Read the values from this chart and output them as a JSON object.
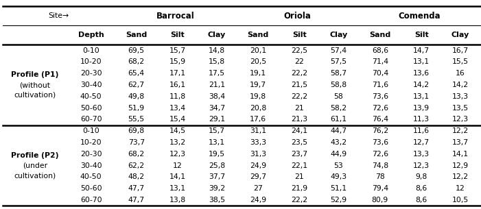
{
  "col_headers": [
    "Depth",
    "Sand",
    "Silt",
    "Clay",
    "Sand",
    "Silt",
    "Clay",
    "Sand",
    "Silt",
    "Clay"
  ],
  "site_labels": [
    "Barrocal",
    "Oriola",
    "Comenda"
  ],
  "p1_rows": [
    [
      "0-10",
      "69,5",
      "15,7",
      "14,8",
      "20,1",
      "22,5",
      "57,4",
      "68,6",
      "14,7",
      "16,7"
    ],
    [
      "10-20",
      "68,2",
      "15,9",
      "15,8",
      "20,5",
      "22",
      "57,5",
      "71,4",
      "13,1",
      "15,5"
    ],
    [
      "20-30",
      "65,4",
      "17,1",
      "17,5",
      "19,1",
      "22,2",
      "58,7",
      "70,4",
      "13,6",
      "16"
    ],
    [
      "30-40",
      "62,7",
      "16,1",
      "21,1",
      "19,7",
      "21,5",
      "58,8",
      "71,6",
      "14,2",
      "14,2"
    ],
    [
      "40-50",
      "49,8",
      "11,8",
      "38,4",
      "19,8",
      "22,2",
      "58",
      "73,6",
      "13,1",
      "13,3"
    ],
    [
      "50-60",
      "51,9",
      "13,4",
      "34,7",
      "20,8",
      "21",
      "58,2",
      "72,6",
      "13,9",
      "13,5"
    ],
    [
      "60-70",
      "55,5",
      "15,4",
      "29,1",
      "17,6",
      "21,3",
      "61,1",
      "76,4",
      "11,3",
      "12,3"
    ]
  ],
  "p2_rows": [
    [
      "0-10",
      "69,8",
      "14,5",
      "15,7",
      "31,1",
      "24,1",
      "44,7",
      "76,2",
      "11,6",
      "12,2"
    ],
    [
      "10-20",
      "73,7",
      "13,2",
      "13,1",
      "33,3",
      "23,5",
      "43,2",
      "73,6",
      "12,7",
      "13,7"
    ],
    [
      "20-30",
      "68,2",
      "12,3",
      "19,5",
      "31,3",
      "23,7",
      "44,9",
      "72,6",
      "13,3",
      "14,1"
    ],
    [
      "30-40",
      "62,2",
      "12",
      "25,8",
      "24,9",
      "22,1",
      "53",
      "74,8",
      "12,3",
      "12,9"
    ],
    [
      "40-50",
      "48,2",
      "14,1",
      "37,7",
      "29,7",
      "21",
      "49,3",
      "78",
      "9,8",
      "12,2"
    ],
    [
      "50-60",
      "47,7",
      "13,1",
      "39,2",
      "27",
      "21,9",
      "51,1",
      "79,4",
      "8,6",
      "12"
    ],
    [
      "60-70",
      "47,7",
      "13,8",
      "38,5",
      "24,9",
      "22,2",
      "52,9",
      "80,9",
      "8,6",
      "10,5"
    ]
  ],
  "profile1_lines": [
    "Profile (P1)",
    "(without",
    "cultivation)"
  ],
  "profile2_lines": [
    "Profile (P2)",
    "(under",
    "cultivation)"
  ],
  "site_arrow": "Site→",
  "background_color": "#ffffff",
  "text_color": "#000000"
}
